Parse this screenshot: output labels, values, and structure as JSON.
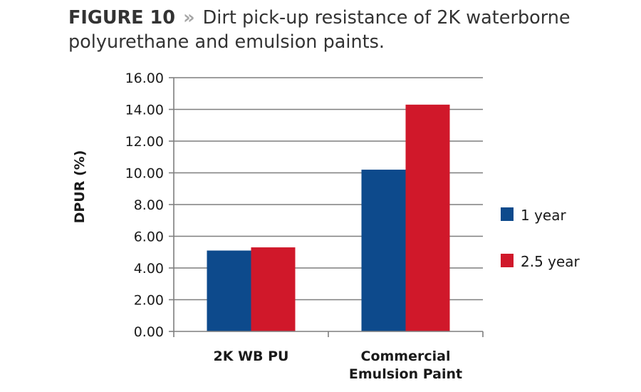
{
  "figure": {
    "label": "FIGURE 10",
    "separator": "»",
    "caption": "Dirt pick-up resistance of 2K waterborne polyurethane and emulsion paints."
  },
  "chart_data": {
    "type": "bar",
    "title": "Dirt pick-up resistance of 2K waterborne polyurethane and emulsion paints.",
    "xlabel": "",
    "ylabel": "DPUR (%)",
    "ylim": [
      0,
      16
    ],
    "ytick_step": 2,
    "ytick_labels": [
      "0.00",
      "2.00",
      "4.00",
      "6.00",
      "8.00",
      "10.00",
      "12.00",
      "14.00",
      "16.00"
    ],
    "grid": true,
    "legend_position": "right",
    "categories": [
      [
        "2K WB PU"
      ],
      [
        "Commercial",
        "Emulsion Paint"
      ]
    ],
    "series": [
      {
        "name": "1 year",
        "color": "#0d4a8c",
        "values": [
          5.1,
          10.2
        ]
      },
      {
        "name": "2.5 year",
        "color": "#d0182a",
        "values": [
          5.3,
          14.3
        ]
      }
    ]
  }
}
